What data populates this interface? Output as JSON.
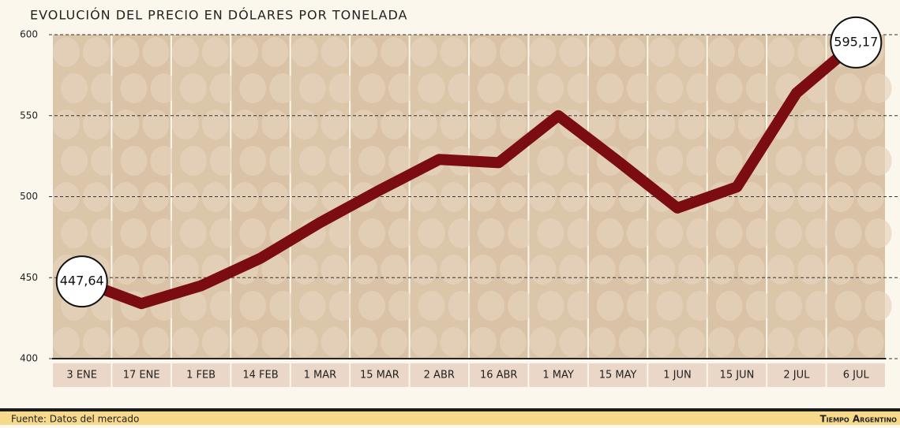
{
  "chart_data": {
    "type": "line",
    "title": "EVOLUCIÓN DEL PRECIO EN DÓLARES POR TONELADA",
    "categories": [
      "3 ENE",
      "17 ENE",
      "1 FEB",
      "14 FEB",
      "1 MAR",
      "15 MAR",
      "2 ABR",
      "16 ABR",
      "1 MAY",
      "15 MAY",
      "1 JUN",
      "15 JUN",
      "2 JUL",
      "6 JUL"
    ],
    "series": [
      {
        "color": "#7a0c12",
        "values": [
          447.64,
          434,
          445,
          462,
          484,
          504,
          523,
          521,
          550,
          522,
          493,
          506,
          564,
          595.17
        ],
        "value_labels": [
          "447,64",
          null,
          null,
          null,
          null,
          null,
          null,
          null,
          null,
          null,
          null,
          null,
          null,
          "595,17"
        ]
      }
    ],
    "ylim": [
      400,
      600
    ],
    "yticks": [
      400,
      450,
      500,
      550,
      600
    ],
    "grid": true,
    "source": "Fuente: Datos del mercado",
    "brand": "Tiempo Argentino"
  }
}
